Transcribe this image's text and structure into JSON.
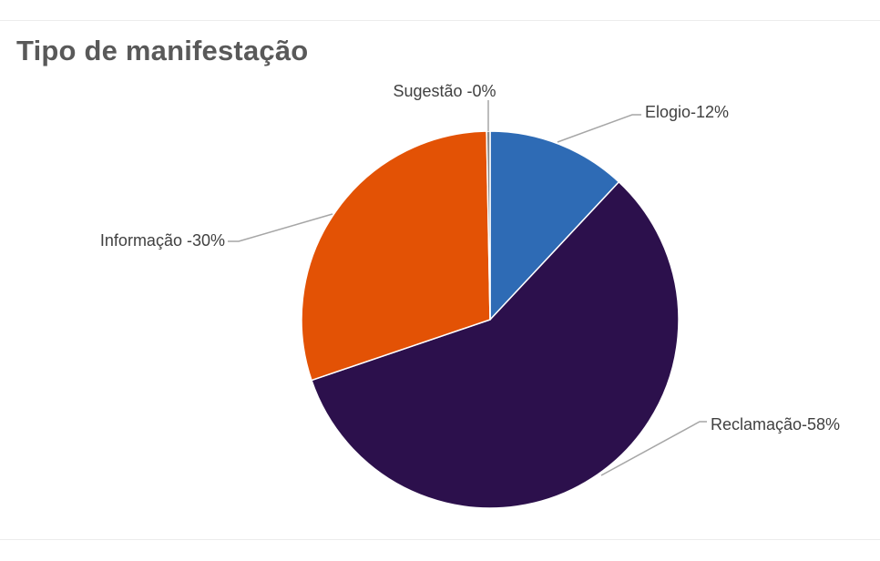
{
  "title": "Tipo de manifestação",
  "chart_data": {
    "type": "pie",
    "title": "Tipo de manifestação",
    "slices": [
      {
        "name": "Elogio",
        "value": 12,
        "label": "Elogio-12%",
        "color": "#2e6bb5"
      },
      {
        "name": "Reclamação",
        "value": 58,
        "label": "Reclamação-58%",
        "color": "#2c104c"
      },
      {
        "name": "Informação",
        "value": 30,
        "label": "Informação -30%",
        "color": "#e35205"
      },
      {
        "name": "Sugestão",
        "value": 0.3,
        "label": "Sugestão -0%",
        "color": "#8a8a8a"
      }
    ],
    "labels_position": "outside with leader lines",
    "legend": "none"
  }
}
